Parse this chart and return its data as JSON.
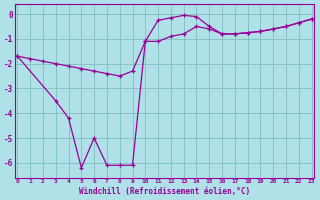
{
  "line1_x": [
    0,
    1,
    2,
    3,
    4,
    5,
    6,
    7,
    8,
    9,
    10,
    11,
    12,
    13,
    14,
    15,
    16,
    17,
    18,
    19,
    20,
    21,
    22,
    23
  ],
  "line1_y": [
    -1.7,
    -1.8,
    -1.9,
    -2.0,
    -2.1,
    -2.2,
    -2.3,
    -2.4,
    -2.5,
    -2.3,
    -1.1,
    -1.1,
    -0.9,
    -0.8,
    -0.5,
    -0.6,
    -0.8,
    -0.8,
    -0.75,
    -0.7,
    -0.6,
    -0.5,
    -0.35,
    -0.2
  ],
  "line2_x": [
    0,
    3,
    4,
    5,
    6,
    7,
    8,
    9,
    10,
    11,
    12,
    13,
    14,
    15,
    16,
    17,
    18,
    19,
    20,
    21,
    22,
    23
  ],
  "line2_y": [
    -1.7,
    -3.5,
    -4.2,
    -6.2,
    -5.0,
    -6.1,
    -6.1,
    -6.1,
    -1.1,
    -0.25,
    -0.15,
    -0.05,
    -0.1,
    -0.5,
    -0.8,
    -0.8,
    -0.75,
    -0.7,
    -0.6,
    -0.5,
    -0.35,
    -0.2
  ],
  "color": "#990099",
  "bg_color": "#b0e0e8",
  "grid_color": "#7fbfbf",
  "xlabel": "Windchill (Refroidissement éolien,°C)",
  "ylim": [
    -6.6,
    0.4
  ],
  "xlim": [
    -0.2,
    23.2
  ],
  "yticks": [
    0,
    -1,
    -2,
    -3,
    -4,
    -5,
    -6
  ],
  "xticks": [
    0,
    1,
    2,
    3,
    4,
    5,
    6,
    7,
    8,
    9,
    10,
    11,
    12,
    13,
    14,
    15,
    16,
    17,
    18,
    19,
    20,
    21,
    22,
    23
  ]
}
